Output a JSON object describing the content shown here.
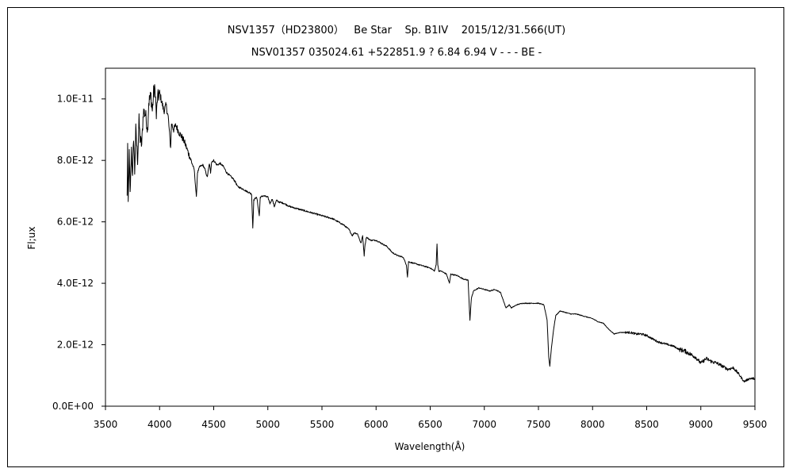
{
  "chart_data": {
    "type": "line",
    "title": "NSV1357（HD23800）   Be Star    Sp. B1IV    2015/12/31.566(UT)",
    "subtitle": "NSV01357 035024.61 +522851.9 ? 6.84 6.94 V - - - BE -",
    "xlabel": "Wavelength(Å)",
    "ylabel": "Fl;ux",
    "xlim": [
      3500,
      9500
    ],
    "ylim": [
      0,
      1.1e-11
    ],
    "x_ticks": [
      "3500",
      "4000",
      "4500",
      "5000",
      "5500",
      "6000",
      "6500",
      "7000",
      "7500",
      "8000",
      "8500",
      "9000",
      "9500"
    ],
    "y_ticks": [
      "0.0E+00",
      "2.0E-12",
      "4.0E-12",
      "6.0E-12",
      "8.0E-12",
      "1.0E-11"
    ],
    "grid": false,
    "series": [
      {
        "color": "#000000",
        "points": [
          [
            3700,
            6.8e-12
          ],
          [
            3705,
            8.5e-12
          ],
          [
            3710,
            6.6e-12
          ],
          [
            3720,
            8.2e-12
          ],
          [
            3728,
            6.9e-12
          ],
          [
            3740,
            8.4e-12
          ],
          [
            3750,
            7.4e-12
          ],
          [
            3760,
            8.8e-12
          ],
          [
            3770,
            7.6e-12
          ],
          [
            3780,
            9e-12
          ],
          [
            3797,
            8e-12
          ],
          [
            3810,
            9.3e-12
          ],
          [
            3820,
            8.7e-12
          ],
          [
            3835,
            8.5e-12
          ],
          [
            3850,
            9.6e-12
          ],
          [
            3870,
            9.5e-12
          ],
          [
            3889,
            9e-12
          ],
          [
            3900,
            9.9e-12
          ],
          [
            3920,
            1.01e-11
          ],
          [
            3933,
            9.6e-12
          ],
          [
            3945,
            1.02e-11
          ],
          [
            3960,
            1.03e-11
          ],
          [
            3970,
            9.4e-12
          ],
          [
            3980,
            1e-11
          ],
          [
            4000,
            1.02e-11
          ],
          [
            4020,
            9.9e-12
          ],
          [
            4040,
            9.6e-12
          ],
          [
            4060,
            9.8e-12
          ],
          [
            4080,
            9.4e-12
          ],
          [
            4102,
            8.4e-12
          ],
          [
            4110,
            9.2e-12
          ],
          [
            4130,
            9e-12
          ],
          [
            4150,
            9.15e-12
          ],
          [
            4180,
            8.9e-12
          ],
          [
            4200,
            8.8e-12
          ],
          [
            4230,
            8.6e-12
          ],
          [
            4260,
            8.3e-12
          ],
          [
            4280,
            8.1e-12
          ],
          [
            4300,
            7.9e-12
          ],
          [
            4320,
            7.7e-12
          ],
          [
            4340,
            6.8e-12
          ],
          [
            4350,
            7.6e-12
          ],
          [
            4371,
            7.8e-12
          ],
          [
            4400,
            7.85e-12
          ],
          [
            4420,
            7.7e-12
          ],
          [
            4440,
            7.45e-12
          ],
          [
            4460,
            7.9e-12
          ],
          [
            4471,
            7.6e-12
          ],
          [
            4480,
            7.95e-12
          ],
          [
            4500,
            8e-12
          ],
          [
            4530,
            7.85e-12
          ],
          [
            4560,
            7.9e-12
          ],
          [
            4590,
            7.8e-12
          ],
          [
            4620,
            7.6e-12
          ],
          [
            4650,
            7.5e-12
          ],
          [
            4680,
            7.4e-12
          ],
          [
            4700,
            7.3e-12
          ],
          [
            4720,
            7.15e-12
          ],
          [
            4750,
            7.1e-12
          ],
          [
            4780,
            7.05e-12
          ],
          [
            4800,
            7e-12
          ],
          [
            4830,
            6.95e-12
          ],
          [
            4850,
            6.9e-12
          ],
          [
            4861,
            5.8e-12
          ],
          [
            4870,
            6.7e-12
          ],
          [
            4890,
            6.8e-12
          ],
          [
            4900,
            6.75e-12
          ],
          [
            4921,
            6.2e-12
          ],
          [
            4930,
            6.8e-12
          ],
          [
            4960,
            6.85e-12
          ],
          [
            5000,
            6.8e-12
          ],
          [
            5020,
            6.6e-12
          ],
          [
            5040,
            6.75e-12
          ],
          [
            5060,
            6.5e-12
          ],
          [
            5080,
            6.7e-12
          ],
          [
            5100,
            6.65e-12
          ],
          [
            5150,
            6.6e-12
          ],
          [
            5200,
            6.5e-12
          ],
          [
            5250,
            6.45e-12
          ],
          [
            5300,
            6.4e-12
          ],
          [
            5350,
            6.35e-12
          ],
          [
            5400,
            6.3e-12
          ],
          [
            5450,
            6.25e-12
          ],
          [
            5500,
            6.2e-12
          ],
          [
            5550,
            6.15e-12
          ],
          [
            5600,
            6.1e-12
          ],
          [
            5650,
            6e-12
          ],
          [
            5700,
            5.9e-12
          ],
          [
            5750,
            5.75e-12
          ],
          [
            5780,
            5.55e-12
          ],
          [
            5800,
            5.65e-12
          ],
          [
            5830,
            5.6e-12
          ],
          [
            5860,
            5.3e-12
          ],
          [
            5876,
            5.55e-12
          ],
          [
            5890,
            4.9e-12
          ],
          [
            5896,
            5.2e-12
          ],
          [
            5910,
            5.5e-12
          ],
          [
            5950,
            5.4e-12
          ],
          [
            6000,
            5.4e-12
          ],
          [
            6050,
            5.3e-12
          ],
          [
            6100,
            5.2e-12
          ],
          [
            6150,
            5e-12
          ],
          [
            6200,
            4.9e-12
          ],
          [
            6250,
            4.85e-12
          ],
          [
            6280,
            4.6e-12
          ],
          [
            6290,
            4.2e-12
          ],
          [
            6300,
            4.7e-12
          ],
          [
            6350,
            4.65e-12
          ],
          [
            6400,
            4.6e-12
          ],
          [
            6450,
            4.55e-12
          ],
          [
            6500,
            4.5e-12
          ],
          [
            6540,
            4.4e-12
          ],
          [
            6555,
            4.6e-12
          ],
          [
            6563,
            5.3e-12
          ],
          [
            6570,
            4.6e-12
          ],
          [
            6580,
            4.4e-12
          ],
          [
            6600,
            4.4e-12
          ],
          [
            6650,
            4.3e-12
          ],
          [
            6678,
            4e-12
          ],
          [
            6690,
            4.3e-12
          ],
          [
            6750,
            4.25e-12
          ],
          [
            6800,
            4.15e-12
          ],
          [
            6850,
            4.1e-12
          ],
          [
            6867,
            2.8e-12
          ],
          [
            6880,
            3.5e-12
          ],
          [
            6900,
            3.75e-12
          ],
          [
            6950,
            3.85e-12
          ],
          [
            7000,
            3.8e-12
          ],
          [
            7050,
            3.75e-12
          ],
          [
            7100,
            3.8e-12
          ],
          [
            7150,
            3.7e-12
          ],
          [
            7180,
            3.4e-12
          ],
          [
            7200,
            3.2e-12
          ],
          [
            7230,
            3.3e-12
          ],
          [
            7250,
            3.2e-12
          ],
          [
            7300,
            3.3e-12
          ],
          [
            7350,
            3.35e-12
          ],
          [
            7400,
            3.35e-12
          ],
          [
            7450,
            3.35e-12
          ],
          [
            7500,
            3.35e-12
          ],
          [
            7550,
            3.3e-12
          ],
          [
            7580,
            2.8e-12
          ],
          [
            7595,
            1.6e-12
          ],
          [
            7605,
            1.3e-12
          ],
          [
            7620,
            1.9e-12
          ],
          [
            7640,
            2.5e-12
          ],
          [
            7660,
            2.95e-12
          ],
          [
            7700,
            3.1e-12
          ],
          [
            7750,
            3.05e-12
          ],
          [
            7800,
            3e-12
          ],
          [
            7850,
            3e-12
          ],
          [
            7900,
            2.95e-12
          ],
          [
            7950,
            2.9e-12
          ],
          [
            8000,
            2.85e-12
          ],
          [
            8050,
            2.75e-12
          ],
          [
            8100,
            2.7e-12
          ],
          [
            8150,
            2.5e-12
          ],
          [
            8200,
            2.35e-12
          ],
          [
            8250,
            2.4e-12
          ],
          [
            8300,
            2.4e-12
          ],
          [
            8350,
            2.4e-12
          ],
          [
            8400,
            2.35e-12
          ],
          [
            8450,
            2.35e-12
          ],
          [
            8500,
            2.3e-12
          ],
          [
            8550,
            2.2e-12
          ],
          [
            8600,
            2.1e-12
          ],
          [
            8650,
            2.05e-12
          ],
          [
            8700,
            2e-12
          ],
          [
            8750,
            1.95e-12
          ],
          [
            8800,
            1.85e-12
          ],
          [
            8850,
            1.8e-12
          ],
          [
            8900,
            1.7e-12
          ],
          [
            8950,
            1.6e-12
          ],
          [
            9000,
            1.4e-12
          ],
          [
            9050,
            1.55e-12
          ],
          [
            9100,
            1.45e-12
          ],
          [
            9150,
            1.4e-12
          ],
          [
            9200,
            1.3e-12
          ],
          [
            9250,
            1.2e-12
          ],
          [
            9300,
            1.25e-12
          ],
          [
            9350,
            1.05e-12
          ],
          [
            9400,
            8e-13
          ],
          [
            9450,
            9e-13
          ],
          [
            9500,
            9e-13
          ]
        ]
      }
    ]
  }
}
